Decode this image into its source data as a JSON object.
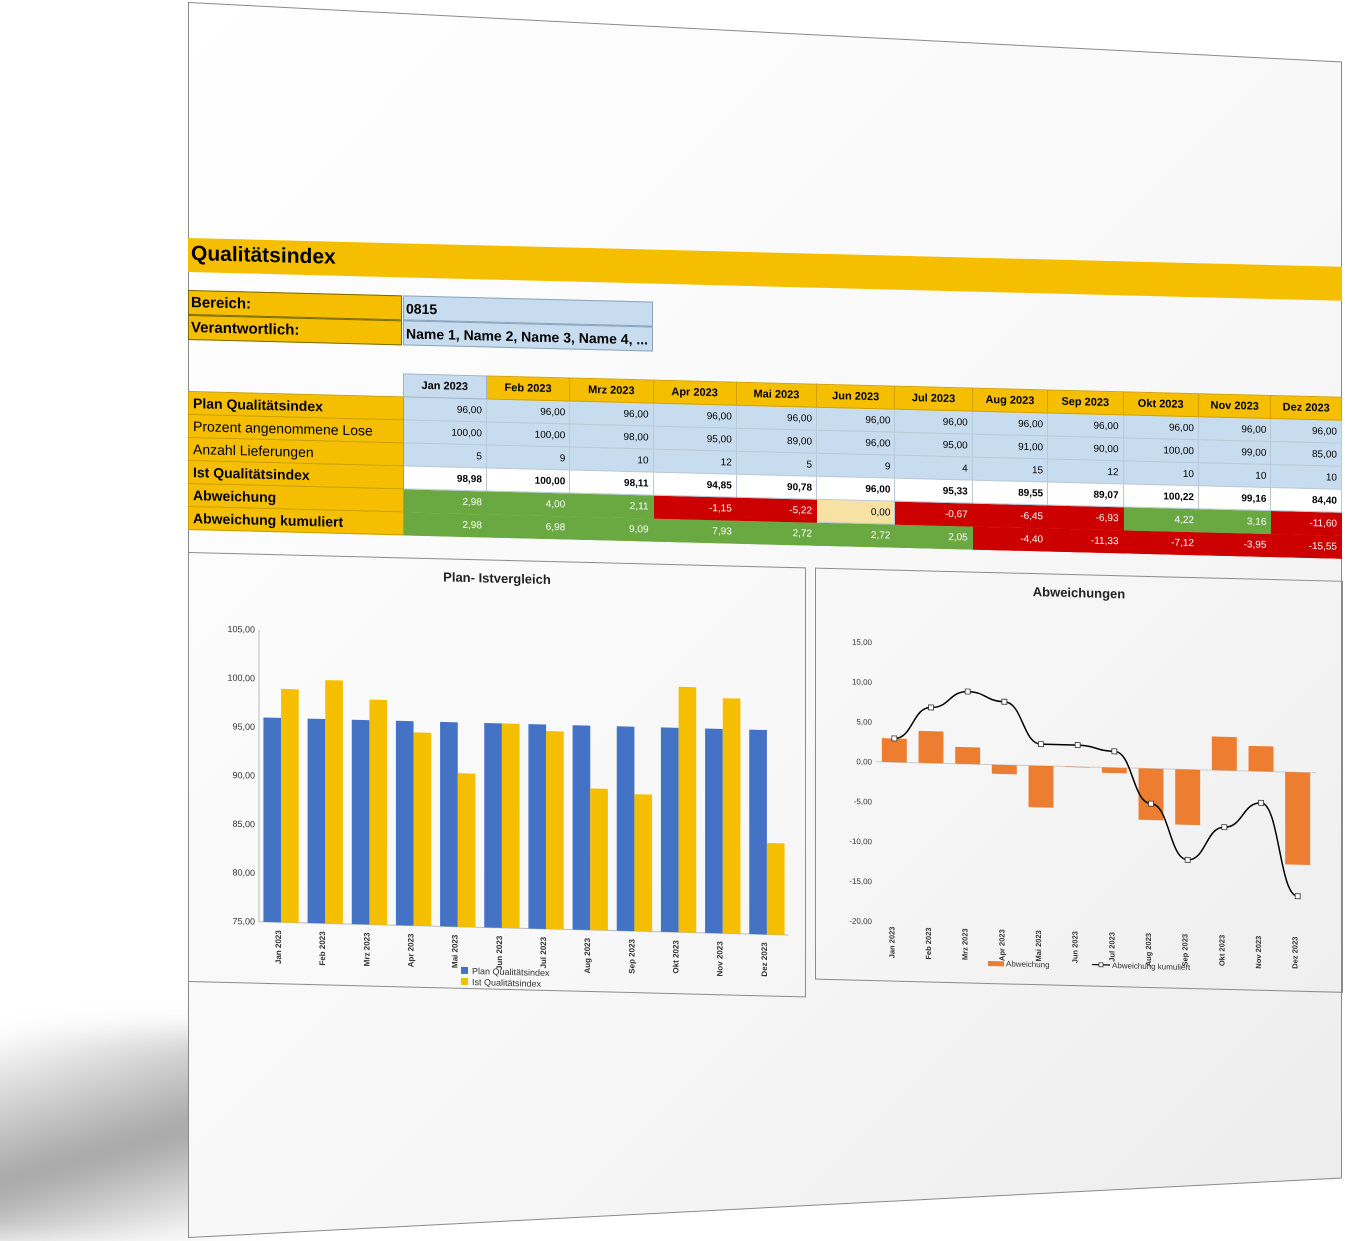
{
  "title": "Qualitätsindex",
  "meta": {
    "bereich_label": "Bereich:",
    "bereich_value": "0815",
    "verantwortlich_label": "Verantwortlich:",
    "verantwortlich_value": "Name 1, Name 2, Name 3, Name 4, ..."
  },
  "months": [
    "Jan 2023",
    "Feb 2023",
    "Mrz 2023",
    "Apr 2023",
    "Mai 2023",
    "Jun 2023",
    "Jul 2023",
    "Aug 2023",
    "Sep 2023",
    "Okt 2023",
    "Nov 2023",
    "Dez 2023"
  ],
  "rows": [
    {
      "label": "Plan Qualitätsindex",
      "bold": true,
      "kind": "num",
      "values": [
        "96,00",
        "96,00",
        "96,00",
        "96,00",
        "96,00",
        "96,00",
        "96,00",
        "96,00",
        "96,00",
        "96,00",
        "96,00",
        "96,00"
      ]
    },
    {
      "label": "Prozent angenommene Lose",
      "bold": false,
      "kind": "num",
      "values": [
        "100,00",
        "100,00",
        "98,00",
        "95,00",
        "89,00",
        "96,00",
        "95,00",
        "91,00",
        "90,00",
        "100,00",
        "99,00",
        "85,00"
      ]
    },
    {
      "label": "Anzahl Lieferungen",
      "bold": false,
      "kind": "num",
      "values": [
        "5",
        "9",
        "10",
        "12",
        "5",
        "9",
        "4",
        "15",
        "12",
        "10",
        "10",
        "10"
      ]
    },
    {
      "label": "Ist Qualitätsindex",
      "bold": true,
      "kind": "ist",
      "values": [
        "98,98",
        "100,00",
        "98,11",
        "94,85",
        "90,78",
        "96,00",
        "95,33",
        "89,55",
        "89,07",
        "100,22",
        "99,16",
        "84,40"
      ]
    },
    {
      "label": "Abweichung",
      "bold": true,
      "kind": "dev",
      "values": [
        "2,98",
        "4,00",
        "2,11",
        "-1,15",
        "-5,22",
        "0,00",
        "-0,67",
        "-6,45",
        "-6,93",
        "4,22",
        "3,16",
        "-11,60"
      ]
    },
    {
      "label": "Abweichung kumuliert",
      "bold": true,
      "kind": "dev",
      "values": [
        "2,98",
        "6,98",
        "9,09",
        "7,93",
        "2,72",
        "2,72",
        "2,05",
        "-4,40",
        "-11,33",
        "-7,12",
        "-3,95",
        "-15,55"
      ]
    }
  ],
  "colors": {
    "plan": "#4472c4",
    "ist": "#f5bf00",
    "bar_dev": "#ed7d31",
    "line_cum": "#000000",
    "pos": "#6aa842",
    "neg": "#cc0000"
  },
  "chart_data": [
    {
      "type": "bar",
      "title": "Plan- Istvergleich",
      "categories": [
        "Jan 2023",
        "Feb 2023",
        "Mrz 2023",
        "Apr 2023",
        "Mai 2023",
        "Jun 2023",
        "Jul 2023",
        "Aug 2023",
        "Sep 2023",
        "Okt 2023",
        "Nov 2023",
        "Dez 2023"
      ],
      "series": [
        {
          "name": "Plan Qualitätsindex",
          "values": [
            96,
            96,
            96,
            96,
            96,
            96,
            96,
            96,
            96,
            96,
            96,
            96
          ]
        },
        {
          "name": "Ist Qualitätsindex",
          "values": [
            98.98,
            100,
            98.11,
            94.85,
            90.78,
            96,
            95.33,
            89.55,
            89.07,
            100.22,
            99.16,
            84.4
          ]
        }
      ],
      "ylim": [
        75,
        105
      ],
      "yticks": [
        "75,00",
        "80,00",
        "85,00",
        "90,00",
        "95,00",
        "100,00",
        "105,00"
      ],
      "legend": "bottom"
    },
    {
      "type": "bar",
      "title": "Abweichungen",
      "categories": [
        "Jan 2023",
        "Feb 2023",
        "Mrz 2023",
        "Apr 2023",
        "Mai 2023",
        "Jun 2023",
        "Jul 2023",
        "Aug 2023",
        "Sep 2023",
        "Okt 2023",
        "Nov 2023",
        "Dez 2023"
      ],
      "series": [
        {
          "name": "Abweichung",
          "kind": "bar",
          "values": [
            2.98,
            4,
            2.11,
            -1.15,
            -5.22,
            0,
            -0.67,
            -6.45,
            -6.93,
            4.22,
            3.16,
            -11.6
          ]
        },
        {
          "name": "Abweichung kumuliert",
          "kind": "line",
          "values": [
            2.98,
            6.98,
            9.09,
            7.93,
            2.72,
            2.72,
            2.05,
            -4.4,
            -11.33,
            -7.12,
            -3.95,
            -15.55
          ]
        }
      ],
      "ylim": [
        -20,
        15
      ],
      "yticks": [
        "-20,00",
        "-15,00",
        "-10,00",
        "-5,00",
        "0,00",
        "5,00",
        "10,00",
        "15,00"
      ],
      "legend": "bottom"
    }
  ]
}
